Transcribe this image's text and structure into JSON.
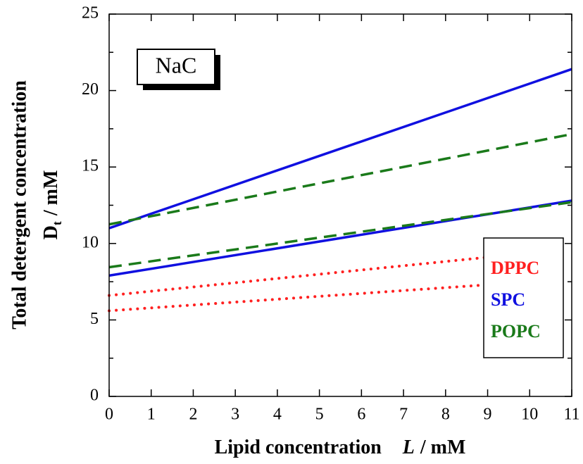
{
  "chart_data": {
    "type": "line",
    "x_label": {
      "text": "Lipid concentration",
      "var": "L",
      "unit": "/ mM"
    },
    "y_label": {
      "line1": "Total detergent concentration",
      "main": "D",
      "sub": "t",
      "unit": "/ mM"
    },
    "annotation": "NaC",
    "xlim": [
      0,
      11
    ],
    "xticks": [
      0,
      1,
      2,
      3,
      4,
      5,
      6,
      7,
      8,
      9,
      10,
      11
    ],
    "ylim": [
      0,
      25
    ],
    "yticks": [
      0,
      5,
      10,
      15,
      20,
      25
    ],
    "yminorticks": [
      2.5,
      7.5,
      12.5,
      17.5,
      22.5
    ],
    "series": [
      {
        "name": "DPPC",
        "color": "#ff2020",
        "style": "dotted",
        "lines": [
          {
            "x": [
              0,
              9
            ],
            "values": [
              6.6,
              9.1
            ]
          },
          {
            "x": [
              0,
              9
            ],
            "values": [
              5.6,
              7.3
            ]
          }
        ]
      },
      {
        "name": "SPC",
        "color": "#1010e0",
        "style": "solid",
        "lines": [
          {
            "x": [
              0,
              11
            ],
            "values": [
              11.0,
              21.4
            ]
          },
          {
            "x": [
              0,
              11
            ],
            "values": [
              7.9,
              12.8
            ]
          }
        ]
      },
      {
        "name": "POPC",
        "color": "#1a7a1a",
        "style": "dashed",
        "lines": [
          {
            "x": [
              0,
              11
            ],
            "values": [
              11.25,
              17.15
            ]
          },
          {
            "x": [
              0,
              11
            ],
            "values": [
              8.45,
              12.7
            ]
          }
        ]
      }
    ]
  }
}
